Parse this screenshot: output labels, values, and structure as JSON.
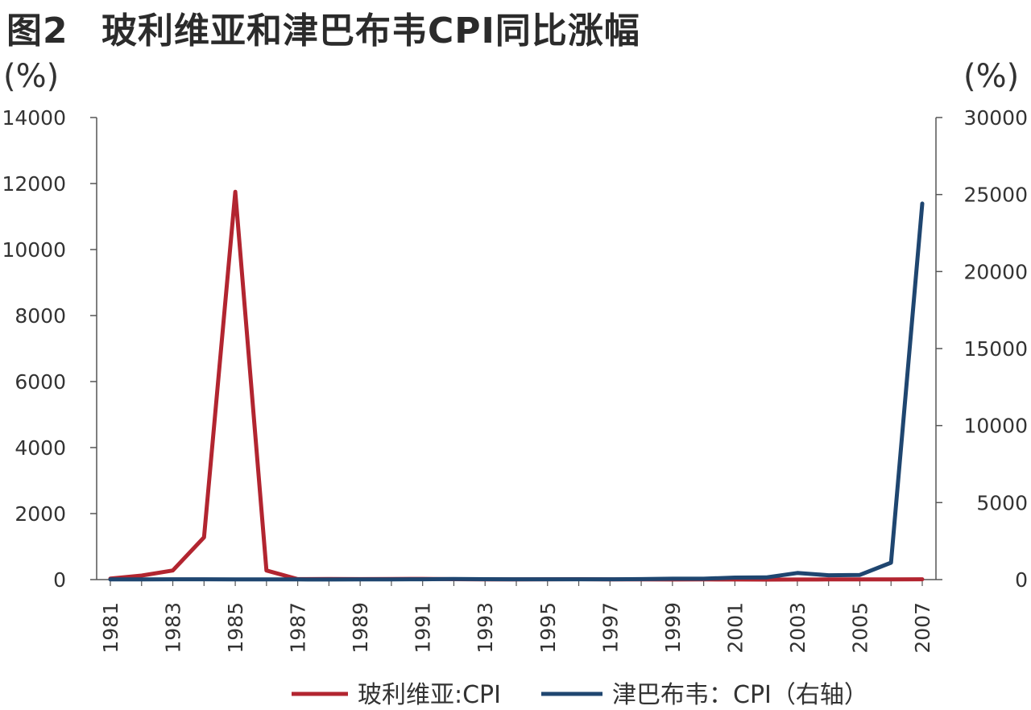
{
  "figure": {
    "title_number": "图2",
    "title_text": "玻利维亚和津巴布韦CPI同比涨幅",
    "unit_left": "(%)",
    "unit_right": "(%)"
  },
  "chart_data": {
    "type": "line",
    "title": "玻利维亚和津巴布韦CPI同比涨幅",
    "x": [
      1981,
      1982,
      1983,
      1984,
      1985,
      1986,
      1987,
      1988,
      1989,
      1990,
      1991,
      1992,
      1993,
      1994,
      1995,
      1996,
      1997,
      1998,
      1999,
      2000,
      2001,
      2002,
      2003,
      2004,
      2005,
      2006,
      2007
    ],
    "x_tick_labels": [
      "1981",
      "1983",
      "1985",
      "1987",
      "1989",
      "1991",
      "1993",
      "1995",
      "1997",
      "1999",
      "2001",
      "2003",
      "2005",
      "2007"
    ],
    "y_left": {
      "lim": [
        0,
        14000
      ],
      "ticks": [
        0,
        2000,
        4000,
        6000,
        8000,
        10000,
        12000,
        14000
      ],
      "tick_labels": [
        "0",
        "2000",
        "4000",
        "6000",
        "8000",
        "10000",
        "12000",
        "14000"
      ]
    },
    "y_right": {
      "lim": [
        0,
        30000
      ],
      "ticks": [
        0,
        5000,
        10000,
        15000,
        20000,
        25000,
        30000
      ],
      "tick_labels": [
        "0",
        "5000",
        "10000",
        "15000",
        "20000",
        "25000",
        "30000"
      ]
    },
    "series": [
      {
        "name": "玻利维亚:CPI",
        "axis": "left",
        "color": "#b22530",
        "values": [
          32,
          123,
          276,
          1281,
          11750,
          276,
          15,
          16,
          15,
          17,
          21,
          12,
          8,
          8,
          10,
          12,
          5,
          8,
          2,
          5,
          2,
          1,
          3,
          4,
          5,
          4,
          9
        ]
      },
      {
        "name": "津巴布韦：CPI（右轴）",
        "axis": "right",
        "color": "#1f4670",
        "values": [
          13,
          11,
          19,
          20,
          10,
          15,
          12,
          7,
          13,
          17,
          23,
          42,
          27,
          23,
          22,
          21,
          19,
          32,
          58,
          56,
          132,
          140,
          431,
          282,
          302,
          1097,
          24411
        ]
      }
    ],
    "legend_position": "bottom-center",
    "grid": false
  }
}
